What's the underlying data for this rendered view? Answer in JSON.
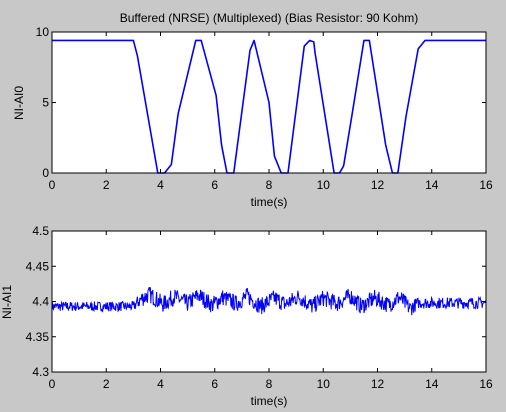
{
  "figure_bg": "#c8c8c8",
  "axes_bg": "#ffffff",
  "line_color": "#0000ff",
  "chart_data": [
    {
      "type": "line",
      "title": "Buffered (NRSE) (Multiplexed) (Bias Resistor: 90 Kohm)",
      "xlabel": "time(s)",
      "ylabel": "NI-AI0",
      "xlim": [
        0,
        16
      ],
      "ylim": [
        0,
        10
      ],
      "xticks": [
        "0",
        "2",
        "4",
        "6",
        "8",
        "10",
        "12",
        "14",
        "16"
      ],
      "yticks": [
        "0",
        "5",
        "10"
      ],
      "grid": false,
      "series": [
        {
          "x": [
            0,
            3.0,
            3.15,
            3.9,
            4.15,
            4.4,
            4.65,
            5.3,
            5.5,
            6.05,
            6.25,
            6.45,
            6.7,
            7.3,
            7.45,
            8.0,
            8.2,
            8.45,
            8.7,
            9.3,
            9.5,
            9.65,
            9.7,
            10.4,
            10.6,
            10.75,
            11.05,
            11.5,
            11.7,
            12.3,
            12.55,
            12.75,
            13.05,
            13.5,
            13.75,
            16
          ],
          "y": [
            9.4,
            9.4,
            8.3,
            0,
            0,
            0.6,
            4.2,
            9.4,
            9.4,
            5.5,
            2.0,
            0,
            0,
            8.7,
            9.4,
            5.0,
            1.2,
            0,
            0,
            9.0,
            9.4,
            9.3,
            8.5,
            0,
            0,
            0.5,
            4.0,
            9.4,
            9.4,
            2.0,
            0,
            0,
            4.0,
            8.8,
            9.4,
            9.4
          ]
        }
      ]
    },
    {
      "type": "line",
      "title": "",
      "xlabel": "time(s)",
      "ylabel": "NI-AI1",
      "xlim": [
        0,
        16
      ],
      "ylim": [
        4.3,
        4.5
      ],
      "xticks": [
        "0",
        "2",
        "4",
        "6",
        "8",
        "10",
        "12",
        "14",
        "16"
      ],
      "yticks": [
        "4.3",
        "4.35",
        "4.4",
        "4.45",
        "4.5"
      ],
      "grid": false,
      "series": [
        {
          "x": [
            0,
            3.0,
            3.3,
            3.6,
            4.1,
            4.5,
            5.0,
            5.4,
            5.9,
            6.3,
            6.8,
            7.2,
            7.7,
            8.2,
            8.6,
            9.1,
            9.6,
            10.0,
            10.5,
            11.0,
            11.4,
            11.9,
            12.4,
            12.8,
            13.2,
            13.5,
            16
          ],
          "y_center": [
            4.393,
            4.393,
            4.404,
            4.41,
            4.396,
            4.407,
            4.397,
            4.409,
            4.395,
            4.406,
            4.397,
            4.408,
            4.393,
            4.405,
            4.396,
            4.407,
            4.393,
            4.405,
            4.397,
            4.408,
            4.393,
            4.405,
            4.395,
            4.406,
            4.39,
            4.398,
            4.398
          ],
          "band_halfwidth": [
            0.007,
            0.007,
            0.012,
            0.012,
            0.012,
            0.012,
            0.012,
            0.012,
            0.012,
            0.012,
            0.012,
            0.012,
            0.012,
            0.012,
            0.012,
            0.012,
            0.012,
            0.012,
            0.012,
            0.012,
            0.012,
            0.012,
            0.012,
            0.012,
            0.012,
            0.008,
            0.008
          ]
        }
      ]
    }
  ]
}
